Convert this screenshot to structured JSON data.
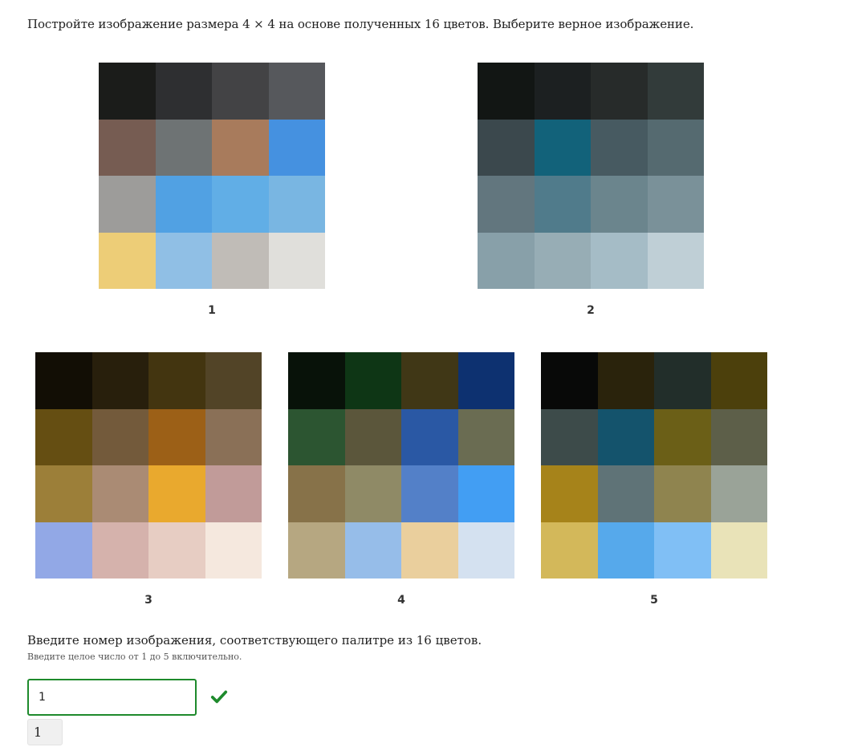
{
  "question": "Постройте изображение размера 4 × 4 на основе полученных 16 цветов. Выберите верное изображение.",
  "options": [
    {
      "label": "1",
      "colors": [
        "#1b1c1a",
        "#2e2f31",
        "#434345",
        "#56585c",
        "#765c52",
        "#6e7374",
        "#a87b5c",
        "#4591e0",
        "#9d9c9a",
        "#51a1e3",
        "#61aee6",
        "#79b6e2",
        "#edcd77",
        "#90bfe5",
        "#c0bcb7",
        "#e0dfdb"
      ]
    },
    {
      "label": "2",
      "colors": [
        "#121614",
        "#1c2021",
        "#272b2a",
        "#323b3a",
        "#3b484d",
        "#12627a",
        "#475a61",
        "#556a70",
        "#62767e",
        "#507b8b",
        "#6b858d",
        "#7a9199",
        "#88a0a9",
        "#97adb5",
        "#a5bcc6",
        "#bfcfd6"
      ]
    },
    {
      "label": "3",
      "colors": [
        "#120e05",
        "#281f0c",
        "#433510",
        "#524427",
        "#654e12",
        "#735a3b",
        "#9c6017",
        "#8a7057",
        "#9c7f39",
        "#aa8b74",
        "#e9a92e",
        "#c19b99",
        "#92a8e6",
        "#d5b2ac",
        "#e7cdc3",
        "#f5e8de"
      ]
    },
    {
      "label": "4",
      "colors": [
        "#081209",
        "#0e3615",
        "#403716",
        "#0d3170",
        "#2c5531",
        "#5b563b",
        "#2a58a4",
        "#6a6c52",
        "#877249",
        "#8f8a66",
        "#5380c8",
        "#429ef3",
        "#b6a781",
        "#96bde9",
        "#eacf9d",
        "#d4e1f0"
      ]
    },
    {
      "label": "5",
      "colors": [
        "#080908",
        "#2a230c",
        "#222e2a",
        "#4c400c",
        "#3d4b4a",
        "#14536c",
        "#6b5f17",
        "#5d5f49",
        "#a6831a",
        "#5f7377",
        "#8f844f",
        "#9aa398",
        "#d3b85a",
        "#56a9eb",
        "#80bff5",
        "#e9e3b8"
      ]
    }
  ],
  "answer": {
    "prompt": "Введите номер изображения, соответствующего палитре из 16 цветов.",
    "hint": "Введите целое число от 1 до 5 включительно.",
    "value": "1",
    "status": "correct",
    "submitted": "1"
  },
  "icons": {
    "status": "check-icon"
  },
  "accent_color": "#1e8a2c"
}
